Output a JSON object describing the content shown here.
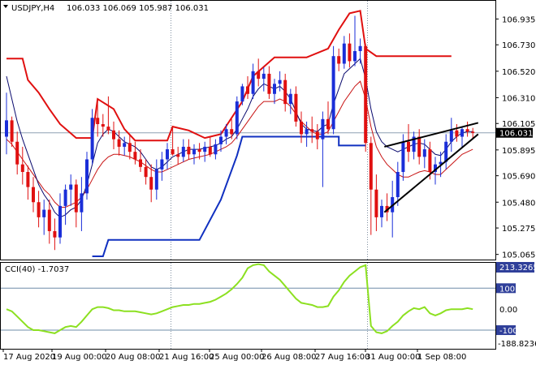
{
  "header": {
    "symbol_label": "USDJPY,H4",
    "ohlc_text": "106.033 106.069 105.987 106.031"
  },
  "indicator": {
    "label": "CCI(40) -1.7037",
    "levels": [
      100,
      0,
      -100
    ],
    "level_labels": [
      "100",
      "0.00",
      "-100"
    ],
    "top_label": "213.3265",
    "bottom_label": "-188.8236"
  },
  "price_axis": {
    "ticks": [
      "106.935",
      "106.730",
      "106.520",
      "106.310",
      "106.105",
      "105.895",
      "105.690",
      "105.480",
      "105.275",
      "105.065"
    ],
    "current_price": "106.031"
  },
  "time_axis": {
    "ticks": [
      "17 Aug 2020",
      "19 Aug 00:00",
      "20 Aug 08:00",
      "21 Aug 16:00",
      "25 Aug 00:00",
      "26 Aug 08:00",
      "27 Aug 16:00",
      "31 Aug 00:00",
      "1 Sep 08:00"
    ]
  },
  "colors": {
    "bull": "#1a2ed8",
    "bear": "#e01010",
    "fast_ma": "#0a0a6e",
    "slow_ma": "#c81414",
    "upper_channel": "#e01010",
    "lower_channel": "#1030c0",
    "cci": "#8ce020",
    "trendline": "#000000",
    "grid": "#7f8fa0",
    "level": "#6f8ca8"
  },
  "chart_data": {
    "type": "candlestick",
    "title": "",
    "ylim": [
      105.05,
      107.06
    ],
    "x": [
      "17 Aug 2020",
      "19 Aug 00:00",
      "20 Aug 08:00",
      "21 Aug 16:00",
      "25 Aug 00:00",
      "26 Aug 08:00",
      "27 Aug 16:00",
      "31 Aug 00:00",
      "1 Sep 08:00"
    ],
    "candles": [
      [
        106.0,
        106.35,
        105.86,
        106.13
      ],
      [
        106.13,
        106.16,
        105.92,
        105.96
      ],
      [
        105.96,
        106.04,
        105.7,
        105.78
      ],
      [
        105.78,
        105.92,
        105.62,
        105.72
      ],
      [
        105.72,
        105.77,
        105.5,
        105.6
      ],
      [
        105.6,
        105.68,
        105.4,
        105.48
      ],
      [
        105.48,
        105.57,
        105.28,
        105.36
      ],
      [
        105.36,
        105.5,
        105.22,
        105.42
      ],
      [
        105.42,
        105.5,
        105.15,
        105.25
      ],
      [
        105.25,
        105.35,
        105.1,
        105.2
      ],
      [
        105.2,
        105.55,
        105.15,
        105.45
      ],
      [
        105.45,
        105.62,
        105.3,
        105.58
      ],
      [
        105.58,
        105.7,
        105.45,
        105.62
      ],
      [
        105.62,
        105.66,
        105.28,
        105.4
      ],
      [
        105.4,
        105.68,
        105.25,
        105.55
      ],
      [
        105.55,
        105.88,
        105.5,
        105.82
      ],
      [
        105.82,
        106.22,
        105.78,
        106.15
      ],
      [
        106.15,
        106.28,
        106.0,
        106.1
      ],
      [
        106.1,
        106.18,
        106.0,
        106.08
      ],
      [
        106.08,
        106.32,
        106.02,
        106.05
      ],
      [
        106.05,
        106.12,
        105.9,
        105.98
      ],
      [
        105.98,
        106.05,
        105.85,
        105.92
      ],
      [
        105.92,
        106.0,
        105.85,
        105.95
      ],
      [
        105.95,
        106.02,
        105.82,
        105.88
      ],
      [
        105.88,
        105.96,
        105.78,
        105.82
      ],
      [
        105.82,
        105.9,
        105.72,
        105.76
      ],
      [
        105.76,
        105.82,
        105.62,
        105.68
      ],
      [
        105.68,
        105.78,
        105.48,
        105.58
      ],
      [
        105.58,
        105.82,
        105.5,
        105.74
      ],
      [
        105.74,
        105.88,
        105.65,
        105.82
      ],
      [
        105.82,
        105.95,
        105.74,
        105.9
      ],
      [
        105.9,
        106.08,
        105.85,
        105.86
      ],
      [
        105.86,
        105.92,
        105.78,
        105.84
      ],
      [
        105.84,
        105.98,
        105.8,
        105.92
      ],
      [
        105.92,
        105.98,
        105.82,
        105.86
      ],
      [
        105.86,
        105.94,
        105.78,
        105.9
      ],
      [
        105.9,
        105.95,
        105.82,
        105.88
      ],
      [
        105.88,
        105.96,
        105.8,
        105.92
      ],
      [
        105.92,
        106.0,
        105.84,
        105.86
      ],
      [
        105.86,
        105.98,
        105.82,
        105.94
      ],
      [
        105.94,
        106.05,
        105.88,
        106.0
      ],
      [
        106.0,
        106.1,
        105.94,
        106.06
      ],
      [
        106.06,
        106.14,
        105.98,
        106.02
      ],
      [
        106.02,
        106.32,
        105.98,
        106.28
      ],
      [
        106.28,
        106.42,
        106.25,
        106.4
      ],
      [
        106.4,
        106.48,
        106.3,
        106.34
      ],
      [
        106.34,
        106.58,
        106.3,
        106.52
      ],
      [
        106.52,
        106.62,
        106.4,
        106.46
      ],
      [
        106.46,
        106.55,
        106.36,
        106.5
      ],
      [
        106.5,
        106.56,
        106.3,
        106.34
      ],
      [
        106.34,
        106.46,
        106.26,
        106.42
      ],
      [
        106.42,
        106.52,
        106.36,
        106.45
      ],
      [
        106.45,
        106.5,
        106.2,
        106.26
      ],
      [
        106.26,
        106.38,
        106.18,
        106.34
      ],
      [
        106.34,
        106.4,
        106.08,
        106.12
      ],
      [
        106.12,
        106.2,
        105.95,
        106.02
      ],
      [
        106.02,
        106.12,
        105.92,
        106.06
      ],
      [
        106.06,
        106.16,
        105.95,
        106.04
      ],
      [
        106.04,
        106.1,
        105.9,
        105.98
      ],
      [
        105.98,
        106.2,
        105.6,
        106.14
      ],
      [
        106.14,
        106.28,
        106.02,
        106.06
      ],
      [
        106.06,
        106.72,
        106.02,
        106.64
      ],
      [
        106.64,
        106.7,
        106.52,
        106.58
      ],
      [
        106.58,
        106.8,
        106.54,
        106.74
      ],
      [
        106.74,
        106.82,
        106.55,
        106.6
      ],
      [
        106.6,
        106.96,
        106.56,
        106.68
      ],
      [
        106.68,
        106.78,
        106.58,
        106.72
      ],
      [
        106.72,
        106.74,
        105.88,
        105.95
      ],
      [
        105.95,
        106.0,
        105.22,
        105.58
      ],
      [
        105.58,
        105.7,
        105.25,
        105.36
      ],
      [
        105.36,
        105.5,
        105.28,
        105.45
      ],
      [
        105.45,
        105.55,
        105.33,
        105.4
      ],
      [
        105.4,
        105.65,
        105.2,
        105.52
      ],
      [
        105.52,
        105.8,
        105.45,
        105.72
      ],
      [
        105.72,
        106.02,
        105.65,
        105.96
      ],
      [
        105.96,
        106.1,
        105.8,
        105.88
      ],
      [
        105.88,
        106.04,
        105.82,
        106.0
      ],
      [
        106.0,
        106.06,
        105.78,
        105.84
      ],
      [
        105.84,
        105.98,
        105.75,
        105.9
      ],
      [
        105.9,
        105.96,
        105.66,
        105.72
      ],
      [
        105.72,
        105.84,
        105.62,
        105.78
      ],
      [
        105.78,
        105.88,
        105.68,
        105.8
      ],
      [
        105.8,
        106.02,
        105.74,
        105.96
      ],
      [
        105.96,
        106.15,
        105.88,
        106.05
      ],
      [
        106.05,
        106.1,
        105.96,
        106.0
      ],
      [
        106.0,
        106.08,
        105.92,
        106.06
      ],
      [
        106.06,
        106.12,
        106.0,
        106.04
      ],
      [
        106.04,
        106.07,
        105.99,
        106.03
      ]
    ],
    "fast_ma": [
      106.48,
      106.3,
      106.12,
      105.98,
      105.86,
      105.74,
      105.62,
      105.54,
      105.48,
      105.4,
      105.36,
      105.38,
      105.42,
      105.44,
      105.5,
      105.62,
      105.78,
      105.95,
      106.02,
      106.06,
      106.04,
      106.0,
      105.96,
      105.94,
      105.92,
      105.88,
      105.82,
      105.76,
      105.74,
      105.76,
      105.8,
      105.84,
      105.86,
      105.88,
      105.9,
      105.9,
      105.9,
      105.91,
      105.92,
      105.93,
      105.95,
      105.98,
      106.0,
      106.06,
      106.14,
      106.22,
      106.32,
      106.38,
      106.42,
      106.4,
      106.38,
      106.4,
      106.36,
      106.3,
      106.2,
      106.1,
      106.06,
      106.05,
      106.04,
      106.08,
      106.1,
      106.26,
      106.38,
      106.5,
      106.54,
      106.58,
      106.62,
      106.46,
      106.22,
      106.04,
      105.96,
      105.92,
      105.9,
      105.88,
      105.9,
      105.92,
      105.94,
      105.95,
      105.94,
      105.9,
      105.86,
      105.85,
      105.9,
      105.96,
      106.0,
      106.03,
      106.04,
      106.04
    ],
    "slow_ma": [
      105.98,
      105.94,
      105.88,
      105.82,
      105.76,
      105.7,
      105.64,
      105.58,
      105.54,
      105.48,
      105.44,
      105.44,
      105.46,
      105.48,
      105.52,
      105.58,
      105.66,
      105.74,
      105.8,
      105.84,
      105.86,
      105.86,
      105.85,
      105.84,
      105.82,
      105.8,
      105.77,
      105.74,
      105.72,
      105.72,
      105.74,
      105.76,
      105.78,
      105.8,
      105.82,
      105.83,
      105.84,
      105.85,
      105.86,
      105.88,
      105.9,
      105.92,
      105.95,
      106.0,
      106.06,
      106.12,
      106.18,
      106.24,
      106.28,
      106.28,
      106.28,
      106.3,
      106.28,
      106.24,
      106.18,
      106.12,
      106.08,
      106.04,
      106.02,
      106.02,
      106.04,
      106.12,
      106.2,
      106.28,
      106.34,
      106.4,
      106.44,
      106.3,
      106.08,
      105.92,
      105.84,
      105.78,
      105.74,
      105.7,
      105.68,
      105.68,
      105.7,
      105.72,
      105.73,
      105.72,
      105.7,
      105.7,
      105.74,
      105.78,
      105.82,
      105.86,
      105.88,
      105.9
    ],
    "upper_channel": [
      [
        0,
        106.62
      ],
      [
        3,
        106.62
      ],
      [
        4,
        106.45
      ],
      [
        6,
        106.35
      ],
      [
        8,
        106.22
      ],
      [
        10,
        106.1
      ],
      [
        13,
        105.99
      ],
      [
        16,
        105.99
      ],
      [
        17,
        106.3
      ],
      [
        20,
        106.22
      ],
      [
        22,
        106.06
      ],
      [
        24,
        105.97
      ],
      [
        30,
        105.97
      ],
      [
        31,
        106.08
      ],
      [
        34,
        106.05
      ],
      [
        37,
        105.99
      ],
      [
        40,
        106.02
      ],
      [
        44,
        106.28
      ],
      [
        46,
        106.48
      ],
      [
        50,
        106.63
      ],
      [
        53,
        106.63
      ],
      [
        56,
        106.63
      ],
      [
        60,
        106.7
      ],
      [
        62,
        106.85
      ],
      [
        64,
        106.98
      ],
      [
        66,
        107.0
      ],
      [
        67,
        106.7
      ],
      [
        69,
        106.64
      ],
      [
        83,
        106.64
      ]
    ],
    "lower_channel": [
      [
        16,
        105.05
      ],
      [
        18,
        105.05
      ],
      [
        19,
        105.18
      ],
      [
        36,
        105.18
      ],
      [
        40,
        105.5
      ],
      [
        43,
        105.85
      ],
      [
        44,
        106.0
      ],
      [
        62,
        106.0
      ],
      [
        62,
        105.93
      ],
      [
        67,
        105.93
      ]
    ],
    "trendlines": [
      [
        [
          70.5,
          105.92
        ],
        [
          88,
          106.11
        ]
      ],
      [
        [
          70.5,
          105.4
        ],
        [
          88,
          106.02
        ]
      ]
    ],
    "cci_values": [
      0,
      -10,
      -35,
      -60,
      -85,
      -100,
      -100,
      -105,
      -110,
      -115,
      -100,
      -85,
      -80,
      -85,
      -60,
      -30,
      0,
      10,
      10,
      5,
      -5,
      -5,
      -10,
      -10,
      -10,
      -15,
      -20,
      -25,
      -20,
      -10,
      0,
      10,
      15,
      20,
      20,
      25,
      25,
      30,
      35,
      45,
      60,
      75,
      95,
      120,
      150,
      195,
      210,
      215,
      210,
      180,
      160,
      140,
      110,
      80,
      50,
      30,
      25,
      20,
      10,
      10,
      15,
      60,
      90,
      130,
      160,
      180,
      200,
      210,
      -80,
      -110,
      -115,
      -105,
      -80,
      -60,
      -30,
      -10,
      5,
      0,
      10,
      -20,
      -30,
      -20,
      -5,
      0,
      0,
      0,
      5,
      0
    ]
  }
}
